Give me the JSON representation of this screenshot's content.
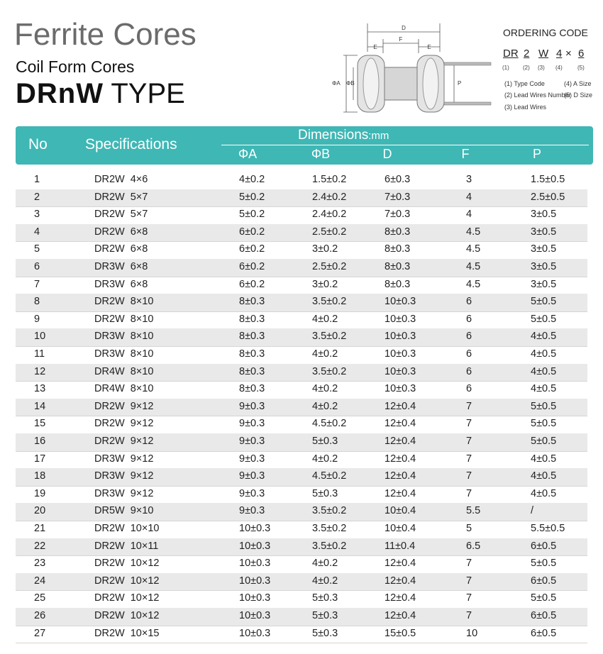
{
  "header": {
    "title": "Ferrite Cores",
    "subtitle": "Coil Form Cores",
    "type_bold": "DRnW",
    "type_word": "TYPE"
  },
  "diagram": {
    "labels": {
      "d": "D",
      "e_left": "E",
      "f": "F",
      "e_right": "E",
      "phi_a": "ΦA",
      "phi_b": "ΦB",
      "p": "P"
    }
  },
  "ordering_code": {
    "title": "ORDERING CODE",
    "parts": [
      "DR",
      "2",
      "W",
      "4",
      "6"
    ],
    "separator": "×",
    "indices": [
      "(1)",
      "(2)",
      "(3)",
      "(4)",
      "(5)"
    ],
    "legend": [
      "(1) Type Code",
      "(4) A Size",
      "(2) Lead Wires Number",
      "(5) D Size",
      "(3) Lead Wires"
    ]
  },
  "table": {
    "header": {
      "no": "No",
      "specifications": "Specifications",
      "dimensions": "Dimensions",
      "unit": ":mm",
      "columns": [
        "ΦA",
        "ΦB",
        "D",
        "F",
        "P"
      ]
    },
    "rows": [
      [
        "1",
        "DR2W 4×6",
        "4±0.2",
        "1.5±0.2",
        "6±0.3",
        "3",
        "1.5±0.5"
      ],
      [
        "2",
        "DR2W 5×7",
        "5±0.2",
        "2.4±0.2",
        "7±0.3",
        "4",
        "2.5±0.5"
      ],
      [
        "3",
        "DR2W 5×7",
        "5±0.2",
        "2.4±0.2",
        "7±0.3",
        "4",
        "3±0.5"
      ],
      [
        "4",
        "DR2W 6×8",
        "6±0.2",
        "2.5±0.2",
        "8±0.3",
        "4.5",
        "3±0.5"
      ],
      [
        "5",
        "DR2W 6×8",
        "6±0.2",
        "3±0.2",
        "8±0.3",
        "4.5",
        "3±0.5"
      ],
      [
        "6",
        "DR3W 6×8",
        "6±0.2",
        "2.5±0.2",
        "8±0.3",
        "4.5",
        "3±0.5"
      ],
      [
        "7",
        "DR3W 6×8",
        "6±0.2",
        "3±0.2",
        "8±0.3",
        "4.5",
        "3±0.5"
      ],
      [
        "8",
        "DR2W 8×10",
        "8±0.3",
        "3.5±0.2",
        "10±0.3",
        "6",
        "5±0.5"
      ],
      [
        "9",
        "DR2W 8×10",
        "8±0.3",
        "4±0.2",
        "10±0.3",
        "6",
        "5±0.5"
      ],
      [
        "10",
        "DR3W 8×10",
        "8±0.3",
        "3.5±0.2",
        "10±0.3",
        "6",
        "4±0.5"
      ],
      [
        "11",
        "DR3W 8×10",
        "8±0.3",
        "4±0.2",
        "10±0.3",
        "6",
        "4±0.5"
      ],
      [
        "12",
        "DR4W 8×10",
        "8±0.3",
        "3.5±0.2",
        "10±0.3",
        "6",
        "4±0.5"
      ],
      [
        "13",
        "DR4W 8×10",
        "8±0.3",
        "4±0.2",
        "10±0.3",
        "6",
        "4±0.5"
      ],
      [
        "14",
        "DR2W 9×12",
        "9±0.3",
        "4±0.2",
        "12±0.4",
        "7",
        "5±0.5"
      ],
      [
        "15",
        "DR2W 9×12",
        "9±0.3",
        "4.5±0.2",
        "12±0.4",
        "7",
        "5±0.5"
      ],
      [
        "16",
        "DR2W 9×12",
        "9±0.3",
        "5±0.3",
        "12±0.4",
        "7",
        "5±0.5"
      ],
      [
        "17",
        "DR3W 9×12",
        "9±0.3",
        "4±0.2",
        "12±0.4",
        "7",
        "4±0.5"
      ],
      [
        "18",
        "DR3W 9×12",
        "9±0.3",
        "4.5±0.2",
        "12±0.4",
        "7",
        "4±0.5"
      ],
      [
        "19",
        "DR3W 9×12",
        "9±0.3",
        "5±0.3",
        "12±0.4",
        "7",
        "4±0.5"
      ],
      [
        "20",
        "DR5W 9×10",
        "9±0.3",
        "3.5±0.2",
        "10±0.4",
        "5.5",
        "/"
      ],
      [
        "21",
        "DR2W 10×10",
        "10±0.3",
        "3.5±0.2",
        "10±0.4",
        "5",
        "5.5±0.5"
      ],
      [
        "22",
        "DR2W 10×11",
        "10±0.3",
        "3.5±0.2",
        "11±0.4",
        "6.5",
        "6±0.5"
      ],
      [
        "23",
        "DR2W 10×12",
        "10±0.3",
        "4±0.2",
        "12±0.4",
        "7",
        "5±0.5"
      ],
      [
        "24",
        "DR2W 10×12",
        "10±0.3",
        "4±0.2",
        "12±0.4",
        "7",
        "6±0.5"
      ],
      [
        "25",
        "DR2W 10×12",
        "10±0.3",
        "5±0.3",
        "12±0.4",
        "7",
        "5±0.5"
      ],
      [
        "26",
        "DR2W 10×12",
        "10±0.3",
        "5±0.3",
        "12±0.4",
        "7",
        "6±0.5"
      ],
      [
        "27",
        "DR2W 10×15",
        "10±0.3",
        "5±0.3",
        "15±0.5",
        "10",
        "6±0.5"
      ]
    ]
  }
}
